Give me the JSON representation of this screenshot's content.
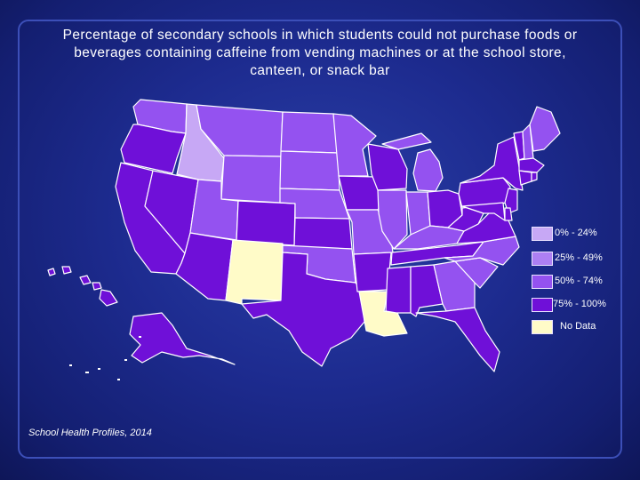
{
  "title_lines": [
    "Percentage of secondary schools in which students could not purchase foods or",
    "beverages containing caffeine from vending machines or at the school store,",
    "canteen, or snack bar"
  ],
  "source": "School Health Profiles, 2014",
  "colors": {
    "c0_24": "#c7a8f5",
    "c25_49": "#ad7ff3",
    "c50_74": "#9452f0",
    "c75_100": "#6f10d8",
    "no_data": "#fffbc8",
    "border": "#ffffff"
  },
  "legend": [
    {
      "key": "c0_24",
      "label": "0% - 24%"
    },
    {
      "key": "c25_49",
      "label": "25% - 49%"
    },
    {
      "key": "c50_74",
      "label": "50% - 74%"
    },
    {
      "key": "c75_100",
      "label": "75% - 100%"
    },
    {
      "key": "no_data",
      "label": "No Data"
    }
  ],
  "states": {
    "WA": "c50_74",
    "OR": "c75_100",
    "CA": "c75_100",
    "NV": "c75_100",
    "ID": "c0_24",
    "MT": "c50_74",
    "WY": "c50_74",
    "UT": "c50_74",
    "AZ": "c75_100",
    "CO": "c75_100",
    "NM": "no_data",
    "ND": "c50_74",
    "SD": "c50_74",
    "NE": "c50_74",
    "KS": "c75_100",
    "OK": "c50_74",
    "TX": "c75_100",
    "MN": "c50_74",
    "IA": "c75_100",
    "MO": "c50_74",
    "AR": "c75_100",
    "LA": "no_data",
    "WI": "c75_100",
    "IL": "c50_74",
    "MI": "c50_74",
    "IN": "c50_74",
    "OH": "c75_100",
    "KY": "c50_74",
    "TN": "c75_100",
    "MS": "c75_100",
    "AL": "c75_100",
    "GA": "c50_74",
    "FL": "c75_100",
    "SC": "c50_74",
    "NC": "c50_74",
    "VA": "c75_100",
    "WV": "c75_100",
    "PA": "c75_100",
    "NY": "c75_100",
    "VT": "c75_100",
    "NH": "c50_74",
    "ME": "c50_74",
    "MA": "c75_100",
    "CT": "c75_100",
    "RI": "c75_100",
    "NJ": "c75_100",
    "DE": "c75_100",
    "MD": "c75_100",
    "AK": "c75_100",
    "HI": "c75_100"
  }
}
